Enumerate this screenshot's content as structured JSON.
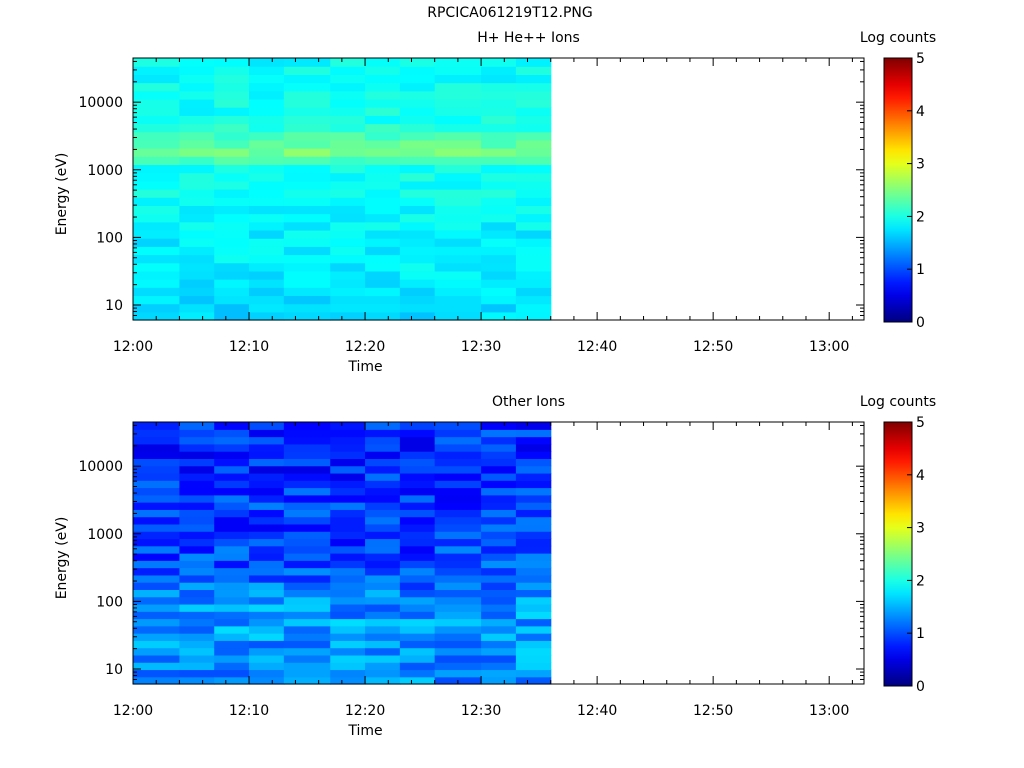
{
  "figure": {
    "title": "RPCICA061219T12.PNG"
  },
  "chart_data": [
    {
      "type": "heatmap",
      "title": "H+ He++ Ions",
      "xlabel": "Time",
      "ylabel": "Energy (eV)",
      "x_ticks": [
        "12:00",
        "12:10",
        "12:20",
        "12:30",
        "12:40",
        "12:50",
        "13:00"
      ],
      "y_scale": "log",
      "y_ticks": [
        10,
        100,
        1000,
        10000
      ],
      "y_range_eV": [
        6,
        45000
      ],
      "x_range": [
        "12:00",
        "13:03"
      ],
      "data_end_time": "12:36",
      "colorbar": {
        "label": "Log counts",
        "min": 0,
        "max": 5,
        "ticks": [
          0,
          1,
          2,
          3,
          4,
          5
        ]
      },
      "time_bins": [
        "12:00",
        "12:04",
        "12:07",
        "12:10",
        "12:13",
        "12:17",
        "12:20",
        "12:23",
        "12:26",
        "12:30",
        "12:33"
      ],
      "energy_bands": [
        {
          "energy_eV": 10,
          "log_counts": 1.7
        },
        {
          "energy_eV": 30,
          "log_counts": 1.8
        },
        {
          "energy_eV": 100,
          "log_counts": 1.8
        },
        {
          "energy_eV": 300,
          "log_counts": 1.9
        },
        {
          "energy_eV": 1000,
          "log_counts": 1.95
        },
        {
          "energy_eV": 2000,
          "log_counts": 2.45
        },
        {
          "energy_eV": 5000,
          "log_counts": 1.95
        },
        {
          "energy_eV": 20000,
          "log_counts": 1.9
        }
      ],
      "peak": {
        "energy_eV": 2000,
        "log_counts": 2.45
      }
    },
    {
      "type": "heatmap",
      "title": "Other Ions",
      "xlabel": "Time",
      "ylabel": "Energy (eV)",
      "x_ticks": [
        "12:00",
        "12:10",
        "12:20",
        "12:30",
        "12:40",
        "12:50",
        "13:00"
      ],
      "y_scale": "log",
      "y_ticks": [
        10,
        100,
        1000,
        10000
      ],
      "y_range_eV": [
        6,
        45000
      ],
      "x_range": [
        "12:00",
        "13:03"
      ],
      "data_end_time": "12:36",
      "colorbar": {
        "label": "Log counts",
        "min": 0,
        "max": 5,
        "ticks": [
          0,
          1,
          2,
          3,
          4,
          5
        ]
      },
      "time_bins": [
        "12:00",
        "12:04",
        "12:07",
        "12:10",
        "12:13",
        "12:17",
        "12:20",
        "12:23",
        "12:26",
        "12:30",
        "12:33"
      ],
      "energy_bands": [
        {
          "energy_eV": 10,
          "log_counts": 1.3
        },
        {
          "energy_eV": 30,
          "log_counts": 1.4
        },
        {
          "energy_eV": 100,
          "log_counts": 1.35
        },
        {
          "energy_eV": 300,
          "log_counts": 1.0
        },
        {
          "energy_eV": 1000,
          "log_counts": 0.9
        },
        {
          "energy_eV": 3000,
          "log_counts": 0.95
        },
        {
          "energy_eV": 10000,
          "log_counts": 0.8
        },
        {
          "energy_eV": 30000,
          "log_counts": 0.85
        }
      ]
    }
  ]
}
